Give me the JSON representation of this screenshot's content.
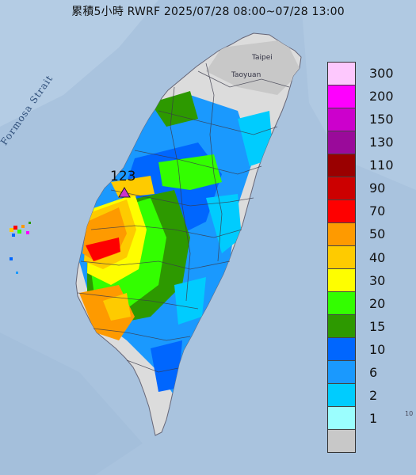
{
  "title": "累積5小時 RWRF 2025/07/28 08:00~07/28 13:00",
  "places": {
    "taipei": "Taipei",
    "taoyuan": "Taoyuan",
    "strait": "Formosa Strait"
  },
  "max_value": "123",
  "legend": [
    {
      "label": "300",
      "color": "#fdc8fd"
    },
    {
      "label": "200",
      "color": "#fe00fe"
    },
    {
      "label": "150",
      "color": "#cc00cc"
    },
    {
      "label": "130",
      "color": "#9a0a9a"
    },
    {
      "label": "110",
      "color": "#9a0000"
    },
    {
      "label": "90",
      "color": "#cc0000"
    },
    {
      "label": "70",
      "color": "#fe0000"
    },
    {
      "label": "50",
      "color": "#fe9a00"
    },
    {
      "label": "40",
      "color": "#fecb00"
    },
    {
      "label": "30",
      "color": "#fefe00"
    },
    {
      "label": "20",
      "color": "#33fe00"
    },
    {
      "label": "15",
      "color": "#2d9900"
    },
    {
      "label": "10",
      "color": "#0066fe"
    },
    {
      "label": "6",
      "color": "#1a99fe"
    },
    {
      "label": "2",
      "color": "#00ccfe"
    },
    {
      "label": "1",
      "color": "#9bfefe"
    },
    {
      "label": "",
      "color": "#c8c8c8"
    }
  ],
  "edge_mark": "10"
}
